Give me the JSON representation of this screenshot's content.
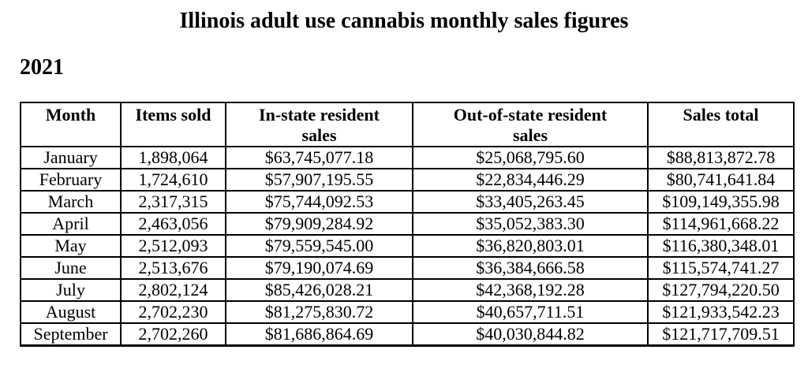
{
  "page": {
    "title": "Illinois adult use cannabis monthly sales figures",
    "year_label": "2021"
  },
  "table": {
    "columns": [
      "Month",
      "Items sold",
      "In-state resident\nsales",
      "Out-of-state resident\nsales",
      "Sales total"
    ],
    "rows": [
      [
        "January",
        "1,898,064",
        "$63,745,077.18",
        "$25,068,795.60",
        "$88,813,872.78"
      ],
      [
        "February",
        "1,724,610",
        "$57,907,195.55",
        "$22,834,446.29",
        "$80,741,641.84"
      ],
      [
        "March",
        "2,317,315",
        "$75,744,092.53",
        "$33,405,263.45",
        "$109,149,355.98"
      ],
      [
        "April",
        "2,463,056",
        "$79,909,284.92",
        "$35,052,383.30",
        "$114,961,668.22"
      ],
      [
        "May",
        "2,512,093",
        "$79,559,545.00",
        "$36,820,803.01",
        "$116,380,348.01"
      ],
      [
        "June",
        "2,513,676",
        "$79,190,074.69",
        "$36,384,666.58",
        "$115,574,741.27"
      ],
      [
        "July",
        "2,802,124",
        "$85,426,028.21",
        "$42,368,192.28",
        "$127,794,220.50"
      ],
      [
        "August",
        "2,702,230",
        "$81,275,830.72",
        "$40,657,711.51",
        "$121,933,542.23"
      ],
      [
        "September",
        "2,702,260",
        "$81,686,864.69",
        "$40,030,844.82",
        "$121,717,709.51"
      ]
    ]
  },
  "colors": {
    "text": "#000000",
    "background": "#ffffff",
    "border": "#000000"
  }
}
